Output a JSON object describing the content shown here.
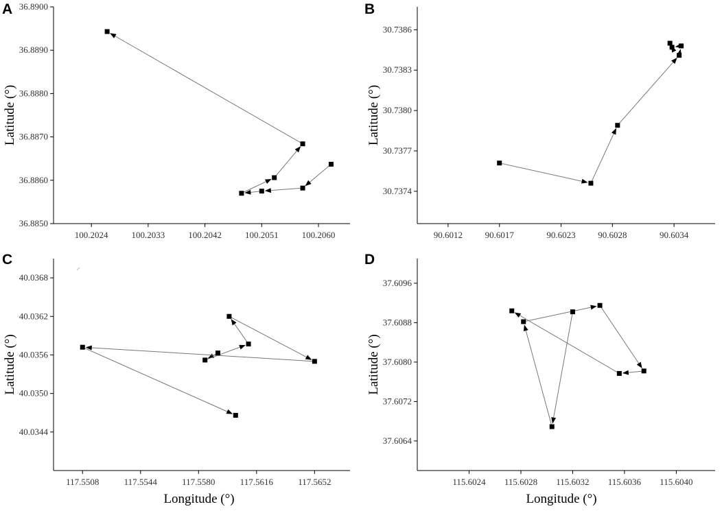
{
  "chart_data": [
    {
      "type": "scatter",
      "panel": "A",
      "xlabel": "",
      "ylabel": "Latitude (°)",
      "xlim": [
        100.2018,
        100.2065
      ],
      "ylim": [
        36.885,
        36.89
      ],
      "xticks": [
        100.2024,
        100.2033,
        100.2042,
        100.2051,
        100.206
      ],
      "xtick_labels": [
        "100.2024",
        "100.2033",
        "100.2042",
        "100.2051",
        "100.2060"
      ],
      "yticks": [
        36.885,
        36.886,
        36.887,
        36.888,
        36.889,
        36.89
      ],
      "ytick_labels": [
        "36.8850",
        "36.8860",
        "36.8870",
        "36.8880",
        "36.8890",
        "36.8900"
      ],
      "path": [
        {
          "x": 100.2062,
          "y": 36.88637
        },
        {
          "x": 100.20575,
          "y": 36.88582
        },
        {
          "x": 100.2051,
          "y": 36.88575
        },
        {
          "x": 100.20478,
          "y": 36.8857
        },
        {
          "x": 100.2053,
          "y": 36.88606
        },
        {
          "x": 100.20575,
          "y": 36.88684
        },
        {
          "x": 100.20265,
          "y": 36.88943
        }
      ]
    },
    {
      "type": "scatter",
      "panel": "B",
      "xlabel": "",
      "ylabel": "Latitude (°)",
      "xlim": [
        90.6009,
        90.6038
      ],
      "ylim": [
        30.73716,
        30.73877
      ],
      "xticks": [
        90.6012,
        90.6017,
        90.6023,
        90.6028,
        90.6034
      ],
      "xtick_labels": [
        "90.6012",
        "90.6017",
        "90.6023",
        "90.6028",
        "90.6034"
      ],
      "yticks": [
        30.7374,
        30.7377,
        30.738,
        30.7383,
        30.7386
      ],
      "ytick_labels": [
        "30.7374",
        "30.7377",
        "30.7380",
        "30.7383",
        "30.7386"
      ],
      "path": [
        {
          "x": 90.6017,
          "y": 30.73761
        },
        {
          "x": 90.60259,
          "y": 30.73746
        },
        {
          "x": 90.60285,
          "y": 30.73789
        },
        {
          "x": 90.60345,
          "y": 30.73841
        },
        {
          "x": 90.60347,
          "y": 30.73848
        },
        {
          "x": 90.60338,
          "y": 30.73847
        },
        {
          "x": 90.60336,
          "y": 30.7385
        }
      ]
    },
    {
      "type": "scatter",
      "panel": "C",
      "xlabel": "",
      "ylabel": "Latitude (°)",
      "xlim": [
        117.549,
        117.5674
      ],
      "ylim": [
        40.0338,
        40.0371
      ],
      "xticks": [
        117.5508,
        117.5544,
        117.558,
        117.5616,
        117.5652
      ],
      "xtick_labels": [
        "117.5508",
        "117.5544",
        "117.5580",
        "117.5616",
        "117.5652"
      ],
      "yticks": [
        40.0344,
        40.035,
        40.0356,
        40.0362,
        40.0368
      ],
      "ytick_labels": [
        "40.0344",
        "40.0350",
        "40.0356",
        "40.0362",
        "40.0368"
      ],
      "path": [
        {
          "x": 117.5592,
          "y": 40.03563
        },
        {
          "x": 117.5584,
          "y": 40.03552
        },
        {
          "x": 117.5611,
          "y": 40.03577
        },
        {
          "x": 117.5599,
          "y": 40.0362
        },
        {
          "x": 117.5652,
          "y": 40.0355
        },
        {
          "x": 117.5508,
          "y": 40.03572
        },
        {
          "x": 117.5603,
          "y": 40.03466
        }
      ]
    },
    {
      "type": "scatter",
      "panel": "D",
      "xlabel": "Longitude (°)",
      "ylabel": "Latitude (°)",
      "xlim": [
        115.602,
        115.6043
      ],
      "ylim": [
        37.6058,
        37.6101
      ],
      "xticks": [
        115.6024,
        115.6028,
        115.6032,
        115.6036,
        115.604
      ],
      "xtick_labels": [
        "115.6024",
        "115.6028",
        "115.6032",
        "115.6036",
        "115.6040"
      ],
      "yticks": [
        37.6064,
        37.6072,
        37.608,
        37.6088,
        37.6096
      ],
      "ytick_labels": [
        "37.6064",
        "37.6072",
        "37.6080",
        "37.6088",
        "37.6096"
      ],
      "path": [
        {
          "x": 115.6032,
          "y": 37.60902
        },
        {
          "x": 115.60304,
          "y": 37.60669
        },
        {
          "x": 115.60282,
          "y": 37.60882
        },
        {
          "x": 115.60341,
          "y": 37.60915
        },
        {
          "x": 115.60375,
          "y": 37.60782
        },
        {
          "x": 115.60356,
          "y": 37.60777
        },
        {
          "x": 115.60273,
          "y": 37.60904
        }
      ]
    }
  ]
}
